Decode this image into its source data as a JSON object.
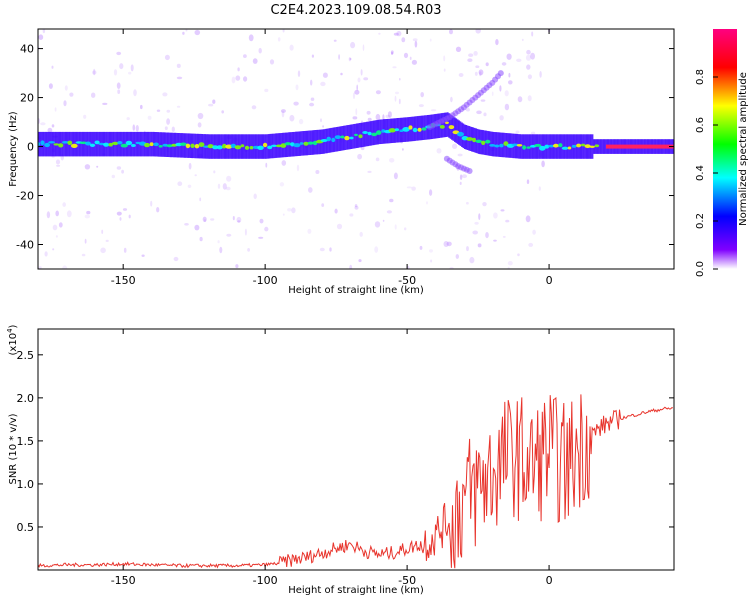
{
  "title": "C2E4.2023.109.08.54.R03",
  "chart_data": [
    {
      "type": "heatmap",
      "xlabel": "Height of straight line (km)",
      "ylabel": "Frequency (Hz)",
      "xlim": [
        -180,
        44
      ],
      "ylim": [
        -50,
        48
      ],
      "xticks": [
        -150,
        -100,
        -50,
        0
      ],
      "yticks": [
        -40,
        -20,
        0,
        20,
        40
      ],
      "colorbar": {
        "label": "Normalized spectral amplitude",
        "range": [
          0.0,
          1.0
        ],
        "ticks": [
          0.0,
          0.2,
          0.4,
          0.6,
          0.8
        ],
        "tick_labels": [
          "0.0",
          "0.2",
          "0.4",
          "0.6",
          "0.8"
        ],
        "colormap": [
          "#ffffff",
          "#8000ff",
          "#0000ff",
          "#00ffff",
          "#00ff00",
          "#ffff00",
          "#ff0000",
          "#ff0080"
        ]
      },
      "ridge": {
        "x": [
          -180,
          -160,
          -140,
          -120,
          -100,
          -90,
          -80,
          -70,
          -60,
          -50,
          -42,
          -36,
          -30,
          -25,
          -20,
          -10,
          0,
          10,
          20,
          30,
          44
        ],
        "y": [
          1,
          1,
          1,
          0,
          0,
          1,
          2,
          4,
          6,
          7,
          8,
          9,
          4,
          2,
          1,
          0,
          0,
          0,
          0,
          0,
          0
        ]
      },
      "branches": [
        {
          "x": [
            -42,
            -35,
            -30,
            -25,
            -20,
            -17
          ],
          "y": [
            8,
            12,
            16,
            21,
            26,
            30
          ]
        },
        {
          "x": [
            -36,
            -32,
            -28
          ],
          "y": [
            -5,
            -8,
            -10
          ]
        }
      ],
      "grid": false
    },
    {
      "type": "line",
      "xlabel": "Height of straight line (km)",
      "ylabel": "SNR (10 * v/v)",
      "y_multiplier_label": "(x10",
      "y_multiplier_exp": "4",
      "y_multiplier_close": ")",
      "xlim": [
        -180,
        44
      ],
      "ylim": [
        0,
        2.8
      ],
      "xticks": [
        -150,
        -100,
        -50,
        0
      ],
      "yticks": [
        0.5,
        1.0,
        1.5,
        2.0,
        2.5
      ],
      "series": [
        {
          "color": "#e8342c",
          "x": [
            -180,
            -170,
            -160,
            -150,
            -140,
            -130,
            -120,
            -110,
            -100,
            -95,
            -90,
            -85,
            -80,
            -75,
            -70,
            -65,
            -60,
            -55,
            -50,
            -45,
            -40,
            -35,
            -30,
            -27,
            -24,
            -21,
            -18,
            -15,
            -12,
            -10,
            -8,
            -6,
            -4,
            -2,
            0,
            2,
            4,
            6,
            8,
            10,
            12,
            14,
            16,
            18,
            20,
            25,
            30,
            35,
            40,
            44
          ],
          "y": [
            0.05,
            0.06,
            0.06,
            0.07,
            0.06,
            0.05,
            0.05,
            0.05,
            0.06,
            0.08,
            0.12,
            0.15,
            0.2,
            0.25,
            0.3,
            0.22,
            0.18,
            0.2,
            0.25,
            0.3,
            0.4,
            0.6,
            0.8,
            0.9,
            1.0,
            1.1,
            1.2,
            1.3,
            1.35,
            1.3,
            1.25,
            1.2,
            1.25,
            1.35,
            1.4,
            1.3,
            1.25,
            1.2,
            1.3,
            1.4,
            1.5,
            1.55,
            1.6,
            1.65,
            1.7,
            1.76,
            1.8,
            1.84,
            1.87,
            1.88
          ]
        }
      ],
      "grid": false
    }
  ]
}
